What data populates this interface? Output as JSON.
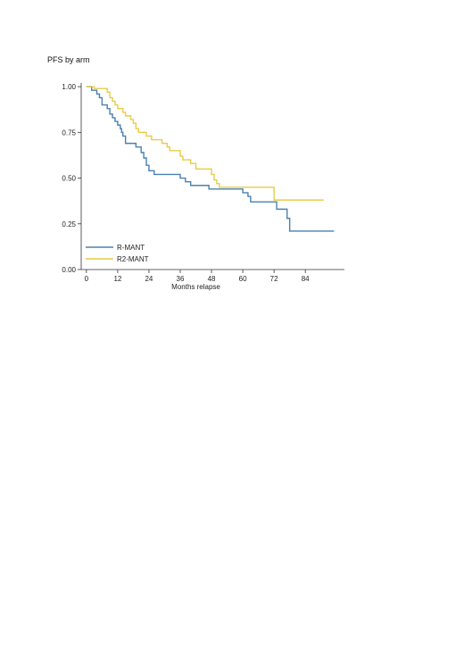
{
  "page": {
    "title": "PFS by arm"
  },
  "chart_data": {
    "type": "line",
    "title": "PFS by arm",
    "xlabel": "Months relapse",
    "ylabel": "",
    "xlim": [
      -2,
      99
    ],
    "ylim": [
      0,
      1.02
    ],
    "x_ticks": [
      0,
      12,
      24,
      36,
      48,
      60,
      72,
      84
    ],
    "y_ticks": [
      0,
      0.25,
      0.5,
      0.75,
      1.0
    ],
    "y_tick_labels": [
      "0.00",
      "0.25",
      "0.50",
      "0.75",
      "1.00"
    ],
    "grid": false,
    "legend": "bottom-left",
    "step": true,
    "series": [
      {
        "name": "R-MANT",
        "color": "#4a80b0",
        "points": [
          [
            0,
            1.0
          ],
          [
            2,
            0.98
          ],
          [
            4,
            0.96
          ],
          [
            5,
            0.94
          ],
          [
            6,
            0.9
          ],
          [
            8,
            0.88
          ],
          [
            9,
            0.85
          ],
          [
            10,
            0.83
          ],
          [
            11,
            0.81
          ],
          [
            12,
            0.79
          ],
          [
            13,
            0.77
          ],
          [
            13.5,
            0.75
          ],
          [
            14,
            0.73
          ],
          [
            15,
            0.69
          ],
          [
            19,
            0.67
          ],
          [
            21,
            0.64
          ],
          [
            22,
            0.61
          ],
          [
            23,
            0.57
          ],
          [
            24,
            0.54
          ],
          [
            26,
            0.52
          ],
          [
            36,
            0.5
          ],
          [
            38,
            0.48
          ],
          [
            40,
            0.46
          ],
          [
            47,
            0.44
          ],
          [
            60,
            0.42
          ],
          [
            62,
            0.4
          ],
          [
            63,
            0.37
          ],
          [
            72,
            0.37
          ],
          [
            73,
            0.33
          ],
          [
            77,
            0.28
          ],
          [
            78,
            0.21
          ],
          [
            95,
            0.21
          ]
        ]
      },
      {
        "name": "R2-MANT",
        "color": "#e8cc48",
        "points": [
          [
            0,
            1.0
          ],
          [
            3,
            0.99
          ],
          [
            8,
            0.97
          ],
          [
            9,
            0.94
          ],
          [
            10,
            0.92
          ],
          [
            11,
            0.9
          ],
          [
            12,
            0.88
          ],
          [
            14,
            0.86
          ],
          [
            15,
            0.84
          ],
          [
            17,
            0.82
          ],
          [
            18,
            0.8
          ],
          [
            19,
            0.77
          ],
          [
            20,
            0.75
          ],
          [
            23,
            0.73
          ],
          [
            25,
            0.71
          ],
          [
            29,
            0.69
          ],
          [
            31,
            0.67
          ],
          [
            32,
            0.65
          ],
          [
            36,
            0.62
          ],
          [
            37,
            0.6
          ],
          [
            40,
            0.58
          ],
          [
            42,
            0.55
          ],
          [
            48,
            0.52
          ],
          [
            49,
            0.49
          ],
          [
            50,
            0.47
          ],
          [
            51,
            0.45
          ],
          [
            72,
            0.38
          ],
          [
            91,
            0.38
          ]
        ]
      }
    ]
  }
}
